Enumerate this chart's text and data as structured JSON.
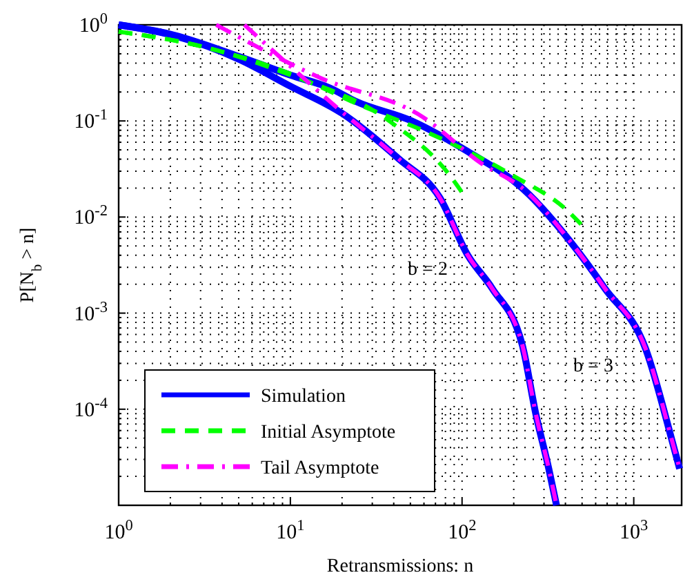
{
  "chart_data": {
    "type": "line",
    "xlabel": "Retransmissions: n",
    "ylabel": "P[N$_{b}$ > n]",
    "log": "xy",
    "grid": true,
    "legend": "bottom left",
    "xlim": [
      1,
      1900
    ],
    "ylim": [
      1e-05,
      1
    ],
    "xticks": [
      {
        "value": 1,
        "label": "10$^{0}$"
      },
      {
        "value": 2,
        "label": null
      },
      {
        "value": 3,
        "label": null
      },
      {
        "value": 4,
        "label": null
      },
      {
        "value": 5,
        "label": null
      },
      {
        "value": 6,
        "label": null
      },
      {
        "value": 7,
        "label": null
      },
      {
        "value": 8,
        "label": null
      },
      {
        "value": 9,
        "label": null
      },
      {
        "value": 10,
        "label": "10$^{1}$"
      },
      {
        "value": 20,
        "label": null
      },
      {
        "value": 30,
        "label": null
      },
      {
        "value": 40,
        "label": null
      },
      {
        "value": 50,
        "label": null
      },
      {
        "value": 60,
        "label": null
      },
      {
        "value": 70,
        "label": null
      },
      {
        "value": 80,
        "label": null
      },
      {
        "value": 90,
        "label": null
      },
      {
        "value": 100,
        "label": "10$^{2}$"
      },
      {
        "value": 200,
        "label": null
      },
      {
        "value": 300,
        "label": null
      },
      {
        "value": 400,
        "label": null
      },
      {
        "value": 500,
        "label": null
      },
      {
        "value": 600,
        "label": null
      },
      {
        "value": 700,
        "label": null
      },
      {
        "value": 800,
        "label": null
      },
      {
        "value": 900,
        "label": null
      },
      {
        "value": 1000,
        "label": "10$^{3}$"
      }
    ],
    "yticks": [
      {
        "value": 0.0001,
        "label": "10$^{-4}$"
      },
      {
        "value": 0.0002,
        "label": null
      },
      {
        "value": 0.0003,
        "label": null
      },
      {
        "value": 0.0004,
        "label": null
      },
      {
        "value": 0.0005,
        "label": null
      },
      {
        "value": 0.0006,
        "label": null
      },
      {
        "value": 0.0007,
        "label": null
      },
      {
        "value": 0.0008,
        "label": null
      },
      {
        "value": 0.0009,
        "label": null
      },
      {
        "value": 2e-05,
        "label": null
      },
      {
        "value": 3e-05,
        "label": null
      },
      {
        "value": 4e-05,
        "label": null
      },
      {
        "value": 5e-05,
        "label": null
      },
      {
        "value": 6e-05,
        "label": null
      },
      {
        "value": 7e-05,
        "label": null
      },
      {
        "value": 8e-05,
        "label": null
      },
      {
        "value": 9e-05,
        "label": null
      },
      {
        "value": 0.001,
        "label": "10$^{-3}$"
      },
      {
        "value": 0.002,
        "label": null
      },
      {
        "value": 0.003,
        "label": null
      },
      {
        "value": 0.004,
        "label": null
      },
      {
        "value": 0.005,
        "label": null
      },
      {
        "value": 0.006,
        "label": null
      },
      {
        "value": 0.007,
        "label": null
      },
      {
        "value": 0.008,
        "label": null
      },
      {
        "value": 0.009,
        "label": null
      },
      {
        "value": 0.01,
        "label": "10$^{-2}$"
      },
      {
        "value": 0.02,
        "label": null
      },
      {
        "value": 0.03,
        "label": null
      },
      {
        "value": 0.04,
        "label": null
      },
      {
        "value": 0.05,
        "label": null
      },
      {
        "value": 0.06,
        "label": null
      },
      {
        "value": 0.07,
        "label": null
      },
      {
        "value": 0.08,
        "label": null
      },
      {
        "value": 0.09,
        "label": null
      },
      {
        "value": 0.1,
        "label": "10$^{-1}$"
      },
      {
        "value": 0.2,
        "label": null
      },
      {
        "value": 0.3,
        "label": null
      },
      {
        "value": 0.4,
        "label": null
      },
      {
        "value": 0.5,
        "label": null
      },
      {
        "value": 0.6,
        "label": null
      },
      {
        "value": 0.7,
        "label": null
      },
      {
        "value": 0.8,
        "label": null
      },
      {
        "value": 0.9,
        "label": null
      },
      {
        "value": 1,
        "label": "10$^{0}$"
      }
    ],
    "series": [
      {
        "name": "Simulation",
        "color": "#0000ff",
        "line_style": "solid",
        "x": [
          1,
          2,
          5,
          10,
          20,
          43,
          74,
          108,
          150,
          224,
          269,
          320,
          355
        ],
        "values": [
          1,
          0.79,
          0.44,
          0.23,
          0.12,
          0.04,
          0.016,
          0.004,
          0.0018,
          0.00047,
          8.9e-05,
          2.4e-05,
          1e-05
        ]
      },
      {
        "color": "#0000ff",
        "line_style": "solid",
        "x": [
          1,
          2,
          5,
          10,
          17,
          24,
          51,
          108,
          224,
          468,
          680,
          1170,
          1700,
          1850
        ],
        "values": [
          1,
          0.8,
          0.47,
          0.3,
          0.22,
          0.16,
          0.1,
          0.048,
          0.02,
          0.0045,
          0.0018,
          0.00043,
          4.2e-05,
          2.4e-05
        ]
      },
      {
        "name": "Initial Asymptote",
        "color": "#00ff00",
        "line_style": "dashed",
        "x": [
          1,
          3,
          10,
          37.6,
          85,
          100
        ],
        "values": [
          0.85,
          0.6,
          0.3,
          0.1,
          0.027,
          0.018
        ]
      },
      {
        "color": "#00ff00",
        "line_style": "dashed",
        "x": [
          1,
          3,
          10,
          24.6,
          65,
          198,
          414,
          497
        ],
        "values": [
          0.85,
          0.6,
          0.31,
          0.15,
          0.074,
          0.027,
          0.0115,
          0.0083
        ]
      },
      {
        "name": "Tail Asymptote",
        "color": "#ff00ff",
        "line_style": "dashdot",
        "x": [
          5.4,
          10,
          19.4,
          43,
          74,
          108,
          150,
          224,
          269,
          320,
          355
        ],
        "values": [
          1,
          0.37,
          0.13,
          0.04,
          0.016,
          0.004,
          0.0018,
          0.00047,
          8.9e-05,
          2.4e-05,
          1e-05
        ]
      },
      {
        "color": "#ff00ff",
        "line_style": "dashdot",
        "x": [
          3.7,
          15,
          59,
          130,
          224,
          468,
          680,
          1170,
          1700,
          1850
        ],
        "values": [
          1,
          0.28,
          0.11,
          0.036,
          0.02,
          0.0045,
          0.0018,
          0.00043,
          4.2e-05,
          2.4e-05
        ]
      }
    ],
    "annotations": [
      "b = 2",
      "b = 3"
    ]
  }
}
